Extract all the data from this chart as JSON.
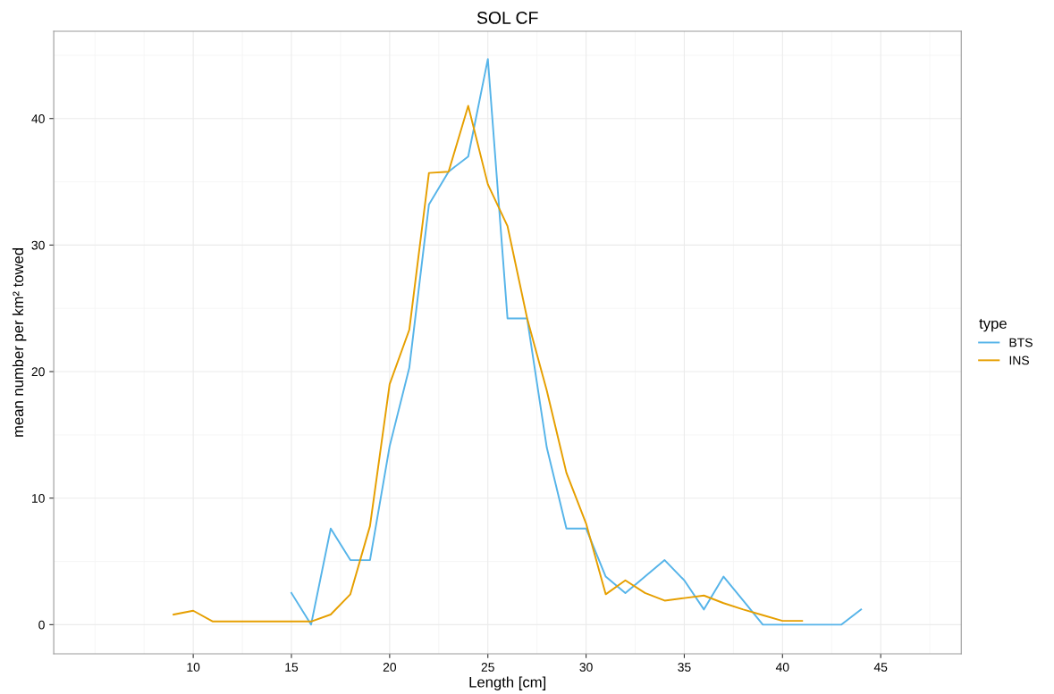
{
  "chart_data": {
    "type": "line",
    "title": "SOL CF",
    "xlabel": "Length [cm]",
    "ylabel": "mean number per km² towed",
    "legend_title": "type",
    "legend": "right",
    "grid": true,
    "xlim": [
      2.9,
      49.1
    ],
    "xticks": [
      10,
      15,
      20,
      25,
      30,
      35,
      40,
      45
    ],
    "ylim": [
      -2.3,
      46.9
    ],
    "yticks": [
      0,
      10,
      20,
      30,
      40
    ],
    "series": [
      {
        "name": "BTS",
        "color": "#56b4e9",
        "x": [
          15,
          16,
          17,
          18,
          19,
          20,
          21,
          22,
          23,
          24,
          25,
          26,
          27,
          28,
          29,
          30,
          31,
          32,
          33,
          34,
          35,
          36,
          37,
          38,
          39,
          40,
          41,
          42,
          43,
          44
        ],
        "values": [
          2.5,
          0,
          7.6,
          5.1,
          5.1,
          14.1,
          20.3,
          33.2,
          35.8,
          37.0,
          44.7,
          24.2,
          24.2,
          14.0,
          7.6,
          7.6,
          3.8,
          2.5,
          3.8,
          5.1,
          3.5,
          1.2,
          3.8,
          1.9,
          0,
          0,
          0,
          0,
          0,
          1.2
        ]
      },
      {
        "name": "INS",
        "color": "#e69f00",
        "x": [
          9,
          10,
          11,
          12,
          13,
          14,
          15,
          16,
          17,
          18,
          19,
          20,
          21,
          22,
          23,
          24,
          25,
          26,
          27,
          28,
          29,
          30,
          31,
          32,
          33,
          34,
          35,
          36,
          37,
          38,
          39,
          40,
          41
        ],
        "values": [
          0.8,
          1.1,
          0.25,
          0.25,
          0.25,
          0.25,
          0.25,
          0.25,
          0.8,
          2.4,
          7.8,
          19.0,
          23.3,
          35.7,
          35.8,
          41.0,
          34.8,
          31.5,
          24.2,
          18.5,
          12.0,
          8.0,
          2.4,
          3.5,
          2.5,
          1.9,
          2.1,
          2.3,
          1.7,
          1.2,
          0.75,
          0.3,
          0.3
        ]
      }
    ]
  }
}
